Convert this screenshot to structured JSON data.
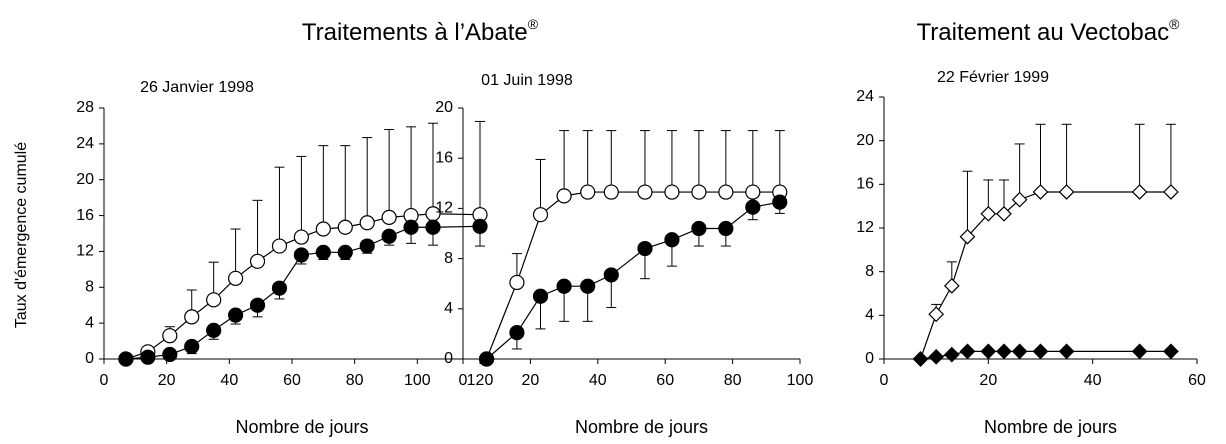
{
  "headers": [
    {
      "text": "Traitements à l’Abate",
      "sup": "®"
    },
    {
      "text": "Traitement au Vectobac",
      "sup": "®"
    }
  ],
  "chart_data": [
    {
      "type": "line",
      "title": "26 Janvier 1998",
      "ylabel": "Taux d'émergence cumulé",
      "xlabel": "Nombre de jours",
      "xlim": [
        0,
        120
      ],
      "xticks": [
        0,
        20,
        40,
        60,
        80,
        100,
        120
      ],
      "ylim": [
        0,
        28
      ],
      "yticks": [
        0,
        4,
        8,
        12,
        16,
        20,
        24,
        28
      ],
      "series": [
        {
          "marker": "circle",
          "fill": "#ffffff",
          "color": "#000000",
          "error_side": "up",
          "x": [
            7,
            14,
            21,
            28,
            35,
            42,
            49,
            56,
            63,
            70,
            77,
            84,
            91,
            98,
            105,
            120
          ],
          "values": [
            0,
            0.8,
            2.6,
            4.7,
            6.6,
            9,
            10.9,
            12.6,
            13.6,
            14.5,
            14.7,
            15.2,
            15.8,
            16,
            16.2,
            16.1
          ],
          "errors": [
            0,
            0,
            1,
            3,
            4.2,
            5.5,
            6.8,
            8.8,
            9,
            9.3,
            9.1,
            9.5,
            9.8,
            9.9,
            10.1,
            10.4
          ]
        },
        {
          "marker": "circle",
          "fill": "#000000",
          "color": "#000000",
          "error_side": "down",
          "x": [
            7,
            14,
            21,
            28,
            35,
            42,
            49,
            56,
            63,
            70,
            77,
            84,
            91,
            98,
            105,
            120
          ],
          "values": [
            0,
            0.2,
            0.5,
            1.4,
            3.2,
            4.9,
            6,
            7.9,
            11.6,
            11.9,
            11.9,
            12.6,
            13.7,
            14.7,
            14.7,
            14.8
          ],
          "errors": [
            0,
            0,
            0.3,
            0.8,
            1,
            1,
            1.3,
            1.2,
            1,
            0.8,
            0.8,
            0.8,
            1,
            1.8,
            2,
            2.2
          ]
        }
      ]
    },
    {
      "type": "line",
      "title": "01 Juin 1998",
      "xlabel": "Nombre de jours",
      "xlim": [
        0,
        100
      ],
      "xticks": [
        0,
        20,
        40,
        60,
        80,
        100
      ],
      "ylim": [
        0,
        20
      ],
      "yticks": [
        0,
        4,
        8,
        12,
        16,
        20
      ],
      "series": [
        {
          "marker": "circle",
          "fill": "#ffffff",
          "color": "#000000",
          "error_side": "up",
          "x": [
            7,
            16,
            23,
            30,
            37,
            44,
            54,
            62,
            70,
            78,
            86,
            94
          ],
          "values": [
            0,
            6.1,
            11.5,
            13,
            13.3,
            13.3,
            13.3,
            13.3,
            13.3,
            13.3,
            13.3,
            13.3
          ],
          "errors": [
            0,
            2.3,
            4.4,
            5.2,
            4.9,
            4.9,
            4.9,
            4.9,
            4.9,
            4.9,
            4.9,
            4.9
          ]
        },
        {
          "marker": "circle",
          "fill": "#000000",
          "color": "#000000",
          "error_side": "down",
          "x": [
            7,
            16,
            23,
            30,
            37,
            44,
            54,
            62,
            70,
            78,
            86,
            94
          ],
          "values": [
            0,
            2.1,
            5,
            5.8,
            5.8,
            6.7,
            8.8,
            9.5,
            10.4,
            10.4,
            12.1,
            12.5
          ],
          "errors": [
            0,
            1.3,
            2.6,
            2.8,
            2.8,
            2.6,
            2.4,
            2.1,
            1.4,
            1.4,
            1,
            0.9
          ]
        }
      ]
    },
    {
      "type": "line",
      "title": "22 Février 1999",
      "xlabel": "Nombre de jours",
      "xlim": [
        0,
        60
      ],
      "xticks": [
        0,
        20,
        40,
        60
      ],
      "ylim": [
        0,
        24
      ],
      "yticks": [
        0,
        4,
        8,
        12,
        16,
        20,
        24
      ],
      "series": [
        {
          "marker": "diamond",
          "fill": "#ffffff",
          "color": "#000000",
          "error_side": "up",
          "x": [
            7,
            10,
            13,
            16,
            20,
            23,
            26,
            30,
            35,
            49,
            55
          ],
          "values": [
            0,
            4.1,
            6.7,
            11.2,
            13.3,
            13.3,
            14.6,
            15.3,
            15.3,
            15.3,
            15.3
          ],
          "errors": [
            0,
            0.9,
            2.2,
            6,
            3.1,
            3.1,
            5.1,
            6.2,
            6.2,
            6.2,
            6.2
          ]
        },
        {
          "marker": "diamond",
          "fill": "#000000",
          "color": "#000000",
          "error_side": "down",
          "x": [
            7,
            10,
            13,
            16,
            20,
            23,
            26,
            30,
            35,
            49,
            55
          ],
          "values": [
            0,
            0.2,
            0.4,
            0.7,
            0.7,
            0.7,
            0.7,
            0.7,
            0.7,
            0.7,
            0.7
          ],
          "errors": [
            0,
            0,
            0,
            0,
            0,
            0,
            0,
            0,
            0,
            0,
            0
          ]
        }
      ]
    }
  ]
}
